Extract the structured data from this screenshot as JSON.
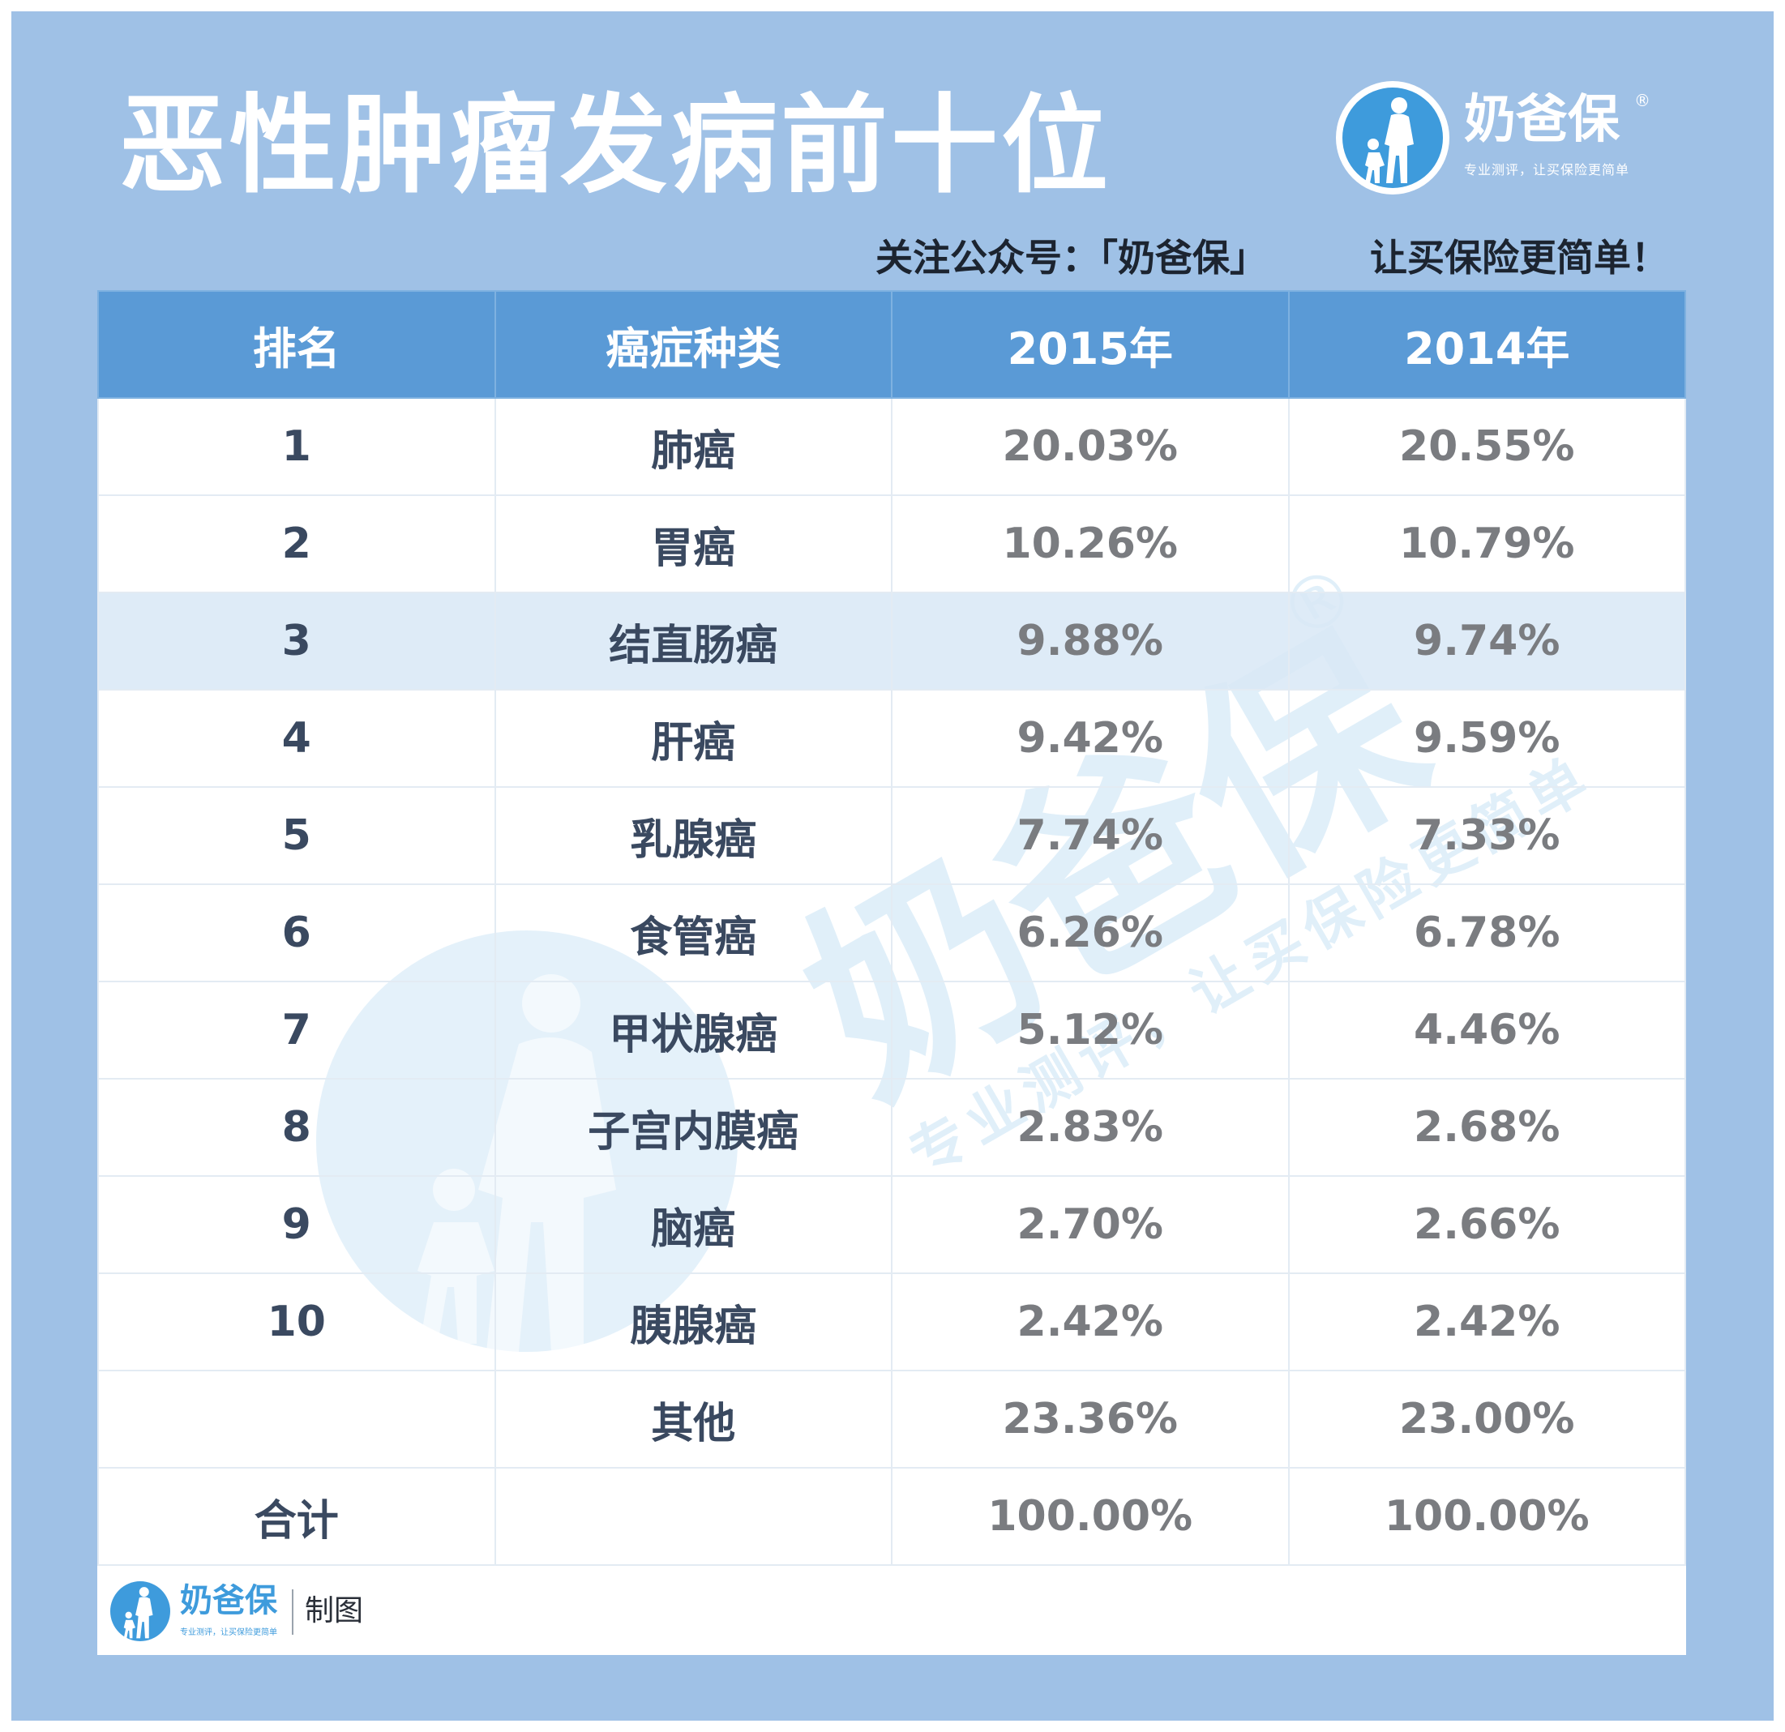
{
  "title": "恶性肿瘤发病前十位",
  "brand": {
    "name": "奶爸保",
    "reg": "®",
    "slogan": "专业测评，让买保险更简单"
  },
  "subline": {
    "left": "关注公众号：「奶爸保」",
    "right": "让买保险更简单！"
  },
  "table": {
    "headers": [
      "排名",
      "癌症种类",
      "2015年",
      "2014年"
    ],
    "rows": [
      {
        "rank": "1",
        "name": "肺癌",
        "y2015": "20.03%",
        "y2014": "20.55%"
      },
      {
        "rank": "2",
        "name": "胃癌",
        "y2015": "10.26%",
        "y2014": "10.79%"
      },
      {
        "rank": "3",
        "name": "结直肠癌",
        "y2015": "9.88%",
        "y2014": "9.74%"
      },
      {
        "rank": "4",
        "name": "肝癌",
        "y2015": "9.42%",
        "y2014": "9.59%"
      },
      {
        "rank": "5",
        "name": "乳腺癌",
        "y2015": "7.74%",
        "y2014": "7.33%"
      },
      {
        "rank": "6",
        "name": "食管癌",
        "y2015": "6.26%",
        "y2014": "6.78%"
      },
      {
        "rank": "7",
        "name": "甲状腺癌",
        "y2015": "5.12%",
        "y2014": "4.46%"
      },
      {
        "rank": "8",
        "name": "子宫内膜癌",
        "y2015": "2.83%",
        "y2014": "2.68%"
      },
      {
        "rank": "9",
        "name": "脑癌",
        "y2015": "2.70%",
        "y2014": "2.66%"
      },
      {
        "rank": "10",
        "name": "胰腺癌",
        "y2015": "2.42%",
        "y2014": "2.42%"
      },
      {
        "rank": "",
        "name": "其他",
        "y2015": "23.36%",
        "y2014": "23.00%"
      },
      {
        "rank": "合计",
        "name": "",
        "y2015": "100.00%",
        "y2014": "100.00%"
      }
    ]
  },
  "watermark": {
    "name": "奶爸保",
    "reg": "®",
    "slogan": "专业测评，让买保险更简单"
  },
  "footer": {
    "name": "奶爸保",
    "slogan": "专业测评，让买保险更简单",
    "label": "制图"
  },
  "colors": {
    "frame": "#9fc1e6",
    "header": "#5a9ad6",
    "brand_blue": "#3e9bdc",
    "highlight_row": "#d8e8f6"
  }
}
